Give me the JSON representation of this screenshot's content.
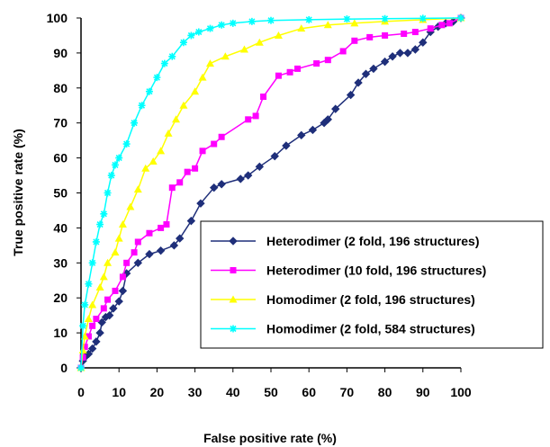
{
  "chart_data": {
    "type": "line",
    "title": "",
    "xlabel": "False positive rate (%)",
    "ylabel": "True positive rate (%)",
    "xlim": [
      0,
      100
    ],
    "ylim": [
      0,
      100
    ],
    "xticks": [
      "0",
      "10",
      "20",
      "30",
      "40",
      "50",
      "60",
      "70",
      "80",
      "90",
      "100"
    ],
    "yticks": [
      "0",
      "10",
      "20",
      "30",
      "40",
      "50",
      "60",
      "70",
      "80",
      "90",
      "100"
    ],
    "grid": false,
    "legend_position": "lower-right",
    "series": [
      {
        "name": "Heterodimer (2 fold, 196 structures)",
        "color": "#1f2f7a",
        "marker": "diamond",
        "points": [
          [
            0,
            0
          ],
          [
            0.5,
            2
          ],
          [
            1,
            3
          ],
          [
            2,
            4
          ],
          [
            3,
            5.5
          ],
          [
            4,
            7.5
          ],
          [
            5,
            10
          ],
          [
            5.5,
            13
          ],
          [
            6.5,
            14.5
          ],
          [
            7.5,
            15
          ],
          [
            8.5,
            17
          ],
          [
            10,
            19
          ],
          [
            11,
            22
          ],
          [
            12,
            27
          ],
          [
            15,
            30
          ],
          [
            18,
            32.5
          ],
          [
            21,
            33.5
          ],
          [
            24.5,
            35
          ],
          [
            26,
            37
          ],
          [
            29,
            42
          ],
          [
            31.5,
            47
          ],
          [
            35,
            51.5
          ],
          [
            37,
            52.5
          ],
          [
            42,
            54
          ],
          [
            44,
            55
          ],
          [
            47,
            57.5
          ],
          [
            51,
            60.5
          ],
          [
            54,
            63.5
          ],
          [
            58,
            66.5
          ],
          [
            61,
            68
          ],
          [
            64,
            70
          ],
          [
            65,
            71
          ],
          [
            67,
            74
          ],
          [
            71,
            78
          ],
          [
            73,
            81.5
          ],
          [
            75,
            84
          ],
          [
            77,
            85.5
          ],
          [
            80,
            87.5
          ],
          [
            82,
            89
          ],
          [
            84,
            90
          ],
          [
            86,
            90
          ],
          [
            88,
            91
          ],
          [
            90,
            93
          ],
          [
            92,
            96
          ],
          [
            94,
            97.5
          ],
          [
            96,
            98.5
          ],
          [
            98,
            99
          ],
          [
            100,
            100
          ]
        ]
      },
      {
        "name": "Heterodimer (10 fold, 196 structures)",
        "color": "#ff00ff",
        "marker": "square",
        "points": [
          [
            0,
            0
          ],
          [
            0.5,
            3
          ],
          [
            1,
            6
          ],
          [
            2,
            9
          ],
          [
            3,
            12
          ],
          [
            4,
            14
          ],
          [
            6,
            17
          ],
          [
            7,
            19.5
          ],
          [
            9,
            22
          ],
          [
            11,
            26
          ],
          [
            12,
            30
          ],
          [
            14,
            33
          ],
          [
            15,
            36
          ],
          [
            18,
            38.5
          ],
          [
            21,
            40
          ],
          [
            22.5,
            41
          ],
          [
            24,
            51.5
          ],
          [
            26,
            53
          ],
          [
            28,
            56
          ],
          [
            30,
            57
          ],
          [
            32,
            62
          ],
          [
            35,
            64
          ],
          [
            37,
            66
          ],
          [
            44,
            71
          ],
          [
            46,
            72
          ],
          [
            48,
            77.5
          ],
          [
            52,
            83.5
          ],
          [
            55,
            84.5
          ],
          [
            57,
            85.5
          ],
          [
            62,
            87
          ],
          [
            65,
            88
          ],
          [
            69,
            90.5
          ],
          [
            72,
            93.5
          ],
          [
            76,
            94.5
          ],
          [
            80,
            95
          ],
          [
            85,
            95.5
          ],
          [
            88,
            96
          ],
          [
            92,
            97
          ],
          [
            95,
            98
          ],
          [
            97,
            98.5
          ],
          [
            100,
            100
          ]
        ]
      },
      {
        "name": "Homodimer (2 fold, 196 structures)",
        "color": "#ffff00",
        "marker": "triangle",
        "points": [
          [
            0,
            0
          ],
          [
            0.5,
            5
          ],
          [
            1,
            9
          ],
          [
            2,
            14
          ],
          [
            3,
            18
          ],
          [
            5,
            23
          ],
          [
            6,
            26
          ],
          [
            7,
            30
          ],
          [
            9,
            33
          ],
          [
            10,
            37
          ],
          [
            11,
            41
          ],
          [
            13,
            46
          ],
          [
            15,
            51
          ],
          [
            17,
            57
          ],
          [
            19,
            59
          ],
          [
            21,
            62
          ],
          [
            23,
            67
          ],
          [
            25,
            71
          ],
          [
            27,
            75
          ],
          [
            30,
            79
          ],
          [
            32,
            83
          ],
          [
            34,
            87
          ],
          [
            38,
            89
          ],
          [
            43,
            91
          ],
          [
            47,
            93
          ],
          [
            52,
            95
          ],
          [
            58,
            97
          ],
          [
            65,
            98
          ],
          [
            72,
            98.5
          ],
          [
            80,
            99
          ],
          [
            90,
            99.5
          ],
          [
            100,
            100
          ]
        ]
      },
      {
        "name": "Homodimer (2 fold, 584 structures)",
        "color": "#00ffff",
        "marker": "cross",
        "points": [
          [
            0,
            0
          ],
          [
            0.5,
            12
          ],
          [
            1,
            18
          ],
          [
            2,
            24
          ],
          [
            3,
            30
          ],
          [
            4,
            36
          ],
          [
            5,
            41
          ],
          [
            6,
            44
          ],
          [
            7,
            50
          ],
          [
            8,
            55
          ],
          [
            9,
            58
          ],
          [
            10,
            60
          ],
          [
            12,
            64
          ],
          [
            14,
            70
          ],
          [
            16,
            75
          ],
          [
            18,
            79
          ],
          [
            20,
            83
          ],
          [
            22,
            87
          ],
          [
            24,
            89
          ],
          [
            27,
            93
          ],
          [
            29,
            95
          ],
          [
            31,
            96
          ],
          [
            34,
            97
          ],
          [
            37,
            98
          ],
          [
            40,
            98.5
          ],
          [
            45,
            99
          ],
          [
            50,
            99.3
          ],
          [
            60,
            99.5
          ],
          [
            70,
            99.7
          ],
          [
            80,
            99.8
          ],
          [
            90,
            99.9
          ],
          [
            100,
            100
          ]
        ]
      }
    ]
  }
}
